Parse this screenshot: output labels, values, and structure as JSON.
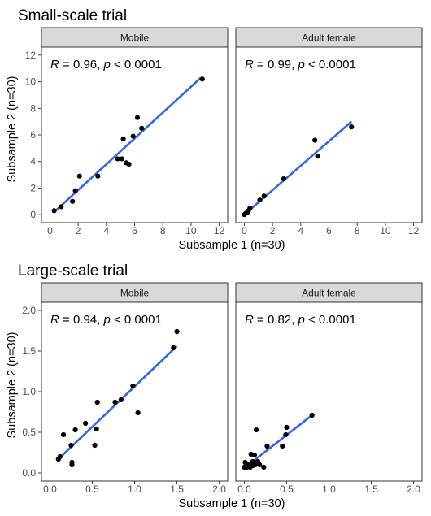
{
  "chart_data": [
    {
      "type": "scatter",
      "title": "Small-scale trial",
      "xlabel": "Subsample 1 (n=30)",
      "ylabel": "Subsample 2 (n=30)",
      "xlim": [
        -0.6,
        12.6
      ],
      "ylim": [
        -0.6,
        12.6
      ],
      "xticks": [
        0,
        2,
        4,
        6,
        8,
        10,
        12
      ],
      "yticks": [
        0,
        2,
        4,
        6,
        8,
        10,
        12
      ],
      "grid": false,
      "regression_line": true,
      "line_color": "#3366e6",
      "point_color": "#000000",
      "panels": [
        {
          "strip": "Mobile",
          "annotation": {
            "r_text": "R = 0.96, ",
            "p_symbol": "p",
            "p_text": " < 0.0001"
          },
          "fit": {
            "x": [
              0.3,
              10.7
            ],
            "y": [
              0.2,
              10.3
            ]
          },
          "points": [
            [
              0.3,
              0.3
            ],
            [
              0.8,
              0.6
            ],
            [
              1.6,
              1.0
            ],
            [
              1.8,
              1.8
            ],
            [
              2.1,
              2.9
            ],
            [
              3.4,
              2.9
            ],
            [
              4.8,
              4.2
            ],
            [
              5.1,
              4.2
            ],
            [
              5.2,
              5.7
            ],
            [
              5.4,
              3.9
            ],
            [
              5.6,
              3.8
            ],
            [
              5.9,
              5.9
            ],
            [
              6.2,
              7.3
            ],
            [
              6.5,
              6.5
            ],
            [
              10.8,
              10.2
            ]
          ]
        },
        {
          "strip": "Adult female",
          "annotation": {
            "r_text": "R = 0.99, ",
            "p_symbol": "p",
            "p_text": " < 0.0001"
          },
          "fit": {
            "x": [
              0.0,
              7.6
            ],
            "y": [
              0.0,
              7.0
            ]
          },
          "points": [
            [
              0.0,
              0.0
            ],
            [
              0.1,
              0.1
            ],
            [
              0.2,
              0.15
            ],
            [
              0.3,
              0.3
            ],
            [
              0.4,
              0.5
            ],
            [
              1.1,
              1.1
            ],
            [
              1.4,
              1.4
            ],
            [
              2.8,
              2.7
            ],
            [
              5.0,
              5.6
            ],
            [
              5.2,
              4.4
            ],
            [
              7.6,
              6.6
            ]
          ]
        }
      ]
    },
    {
      "type": "scatter",
      "title": "Large-scale trial",
      "xlabel": "Subsample 1 (n=30)",
      "ylabel": "Subsample 2 (n=30)",
      "xlim": [
        -0.1,
        2.1
      ],
      "ylim": [
        -0.1,
        2.1
      ],
      "xticks": [
        0.0,
        0.5,
        1.0,
        1.5,
        2.0
      ],
      "yticks": [
        0.0,
        0.5,
        1.0,
        1.5,
        2.0
      ],
      "tick_format": "1dp",
      "grid": false,
      "regression_line": true,
      "line_color": "#3366e6",
      "point_color": "#000000",
      "panels": [
        {
          "strip": "Mobile",
          "annotation": {
            "r_text": "R = 0.94, ",
            "p_symbol": "p",
            "p_text": " < 0.0001"
          },
          "fit": {
            "x": [
              0.08,
              1.5
            ],
            "y": [
              0.15,
              1.56
            ]
          },
          "points": [
            [
              0.1,
              0.17
            ],
            [
              0.12,
              0.2
            ],
            [
              0.16,
              0.47
            ],
            [
              0.25,
              0.34
            ],
            [
              0.26,
              0.13
            ],
            [
              0.26,
              0.1
            ],
            [
              0.3,
              0.53
            ],
            [
              0.42,
              0.61
            ],
            [
              0.53,
              0.34
            ],
            [
              0.55,
              0.54
            ],
            [
              0.56,
              0.87
            ],
            [
              0.77,
              0.87
            ],
            [
              0.84,
              0.9
            ],
            [
              0.98,
              1.07
            ],
            [
              1.04,
              0.74
            ],
            [
              1.46,
              1.54
            ],
            [
              1.5,
              1.74
            ]
          ]
        },
        {
          "strip": "Adult female",
          "annotation": {
            "r_text": "R = 0.82, ",
            "p_symbol": "p",
            "p_text": " < 0.0001"
          },
          "fit": {
            "x": [
              0.0,
              0.8
            ],
            "y": [
              0.06,
              0.71
            ]
          },
          "points": [
            [
              0.0,
              0.07
            ],
            [
              0.01,
              0.13
            ],
            [
              0.03,
              0.07
            ],
            [
              0.05,
              0.1
            ],
            [
              0.07,
              0.07
            ],
            [
              0.08,
              0.23
            ],
            [
              0.1,
              0.14
            ],
            [
              0.1,
              0.09
            ],
            [
              0.12,
              0.22
            ],
            [
              0.13,
              0.1
            ],
            [
              0.14,
              0.53
            ],
            [
              0.16,
              0.14
            ],
            [
              0.18,
              0.1
            ],
            [
              0.23,
              0.07
            ],
            [
              0.27,
              0.33
            ],
            [
              0.45,
              0.33
            ],
            [
              0.49,
              0.47
            ],
            [
              0.5,
              0.56
            ],
            [
              0.8,
              0.71
            ]
          ]
        }
      ]
    }
  ]
}
